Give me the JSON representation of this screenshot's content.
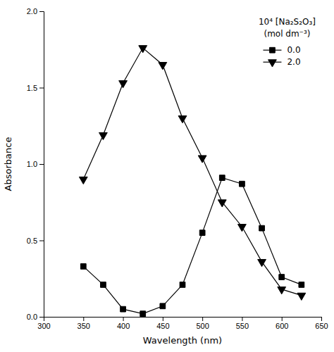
{
  "chart_data": {
    "type": "line",
    "xlabel": "Wavelength (nm)",
    "ylabel": "Absorbance",
    "legend_title": [
      "10⁴ [Na₂S₂O₃]",
      "(mol dm⁻³)"
    ],
    "x": [
      350,
      375,
      400,
      425,
      450,
      475,
      500,
      525,
      550,
      575,
      600,
      625
    ],
    "series": [
      {
        "name": "0.0",
        "color": "#000000",
        "marker": "square",
        "line_style": "solid",
        "values": [
          0.33,
          0.21,
          0.05,
          0.02,
          0.07,
          0.21,
          0.55,
          0.91,
          0.87,
          0.58,
          0.26,
          0.21
        ]
      },
      {
        "name": "2.0",
        "color": "#000000",
        "marker": "triangle-down",
        "line_style": "solid",
        "values": [
          0.9,
          1.19,
          1.53,
          1.76,
          1.65,
          1.3,
          1.04,
          0.75,
          0.59,
          0.36,
          0.18,
          0.14
        ]
      }
    ],
    "xlim": [
      300,
      650
    ],
    "ylim": [
      0.0,
      2.0
    ],
    "xticks": [
      300,
      350,
      400,
      450,
      500,
      550,
      600,
      650
    ],
    "yticks": [
      {
        "value": 0.0,
        "label": "0.0"
      },
      0.5,
      {
        "value": 1.0,
        "label": "1.0"
      },
      1.5,
      {
        "value": 2.0,
        "label": "2.0"
      }
    ],
    "grid": false,
    "legend": "upper right"
  }
}
